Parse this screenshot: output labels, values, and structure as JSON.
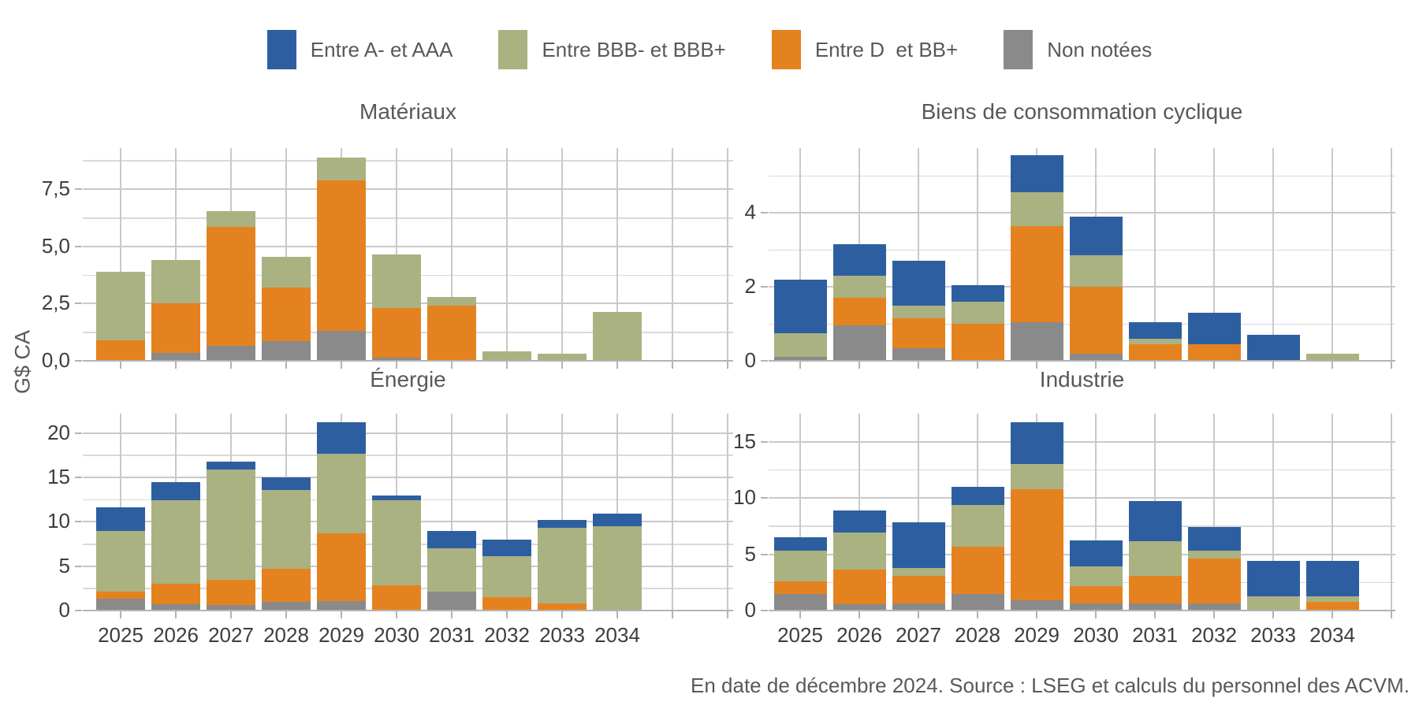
{
  "legend": {
    "items": [
      {
        "label": "Entre A- et AAA",
        "color": "#2d5fa0"
      },
      {
        "label": "Entre BBB- et BBB+",
        "color": "#aab282"
      },
      {
        "label": "Entre D  et BB+",
        "color": "#e58220"
      },
      {
        "label": "Non notées",
        "color": "#8a8a8a"
      }
    ]
  },
  "y_axis_label": "G$ CA",
  "caption": "En date de décembre 2024. Source : LSEG et calculs du personnel des ACVM.",
  "chart_data": [
    {
      "type": "bar",
      "stacked": true,
      "title": "Matériaux",
      "categories": [
        "2025",
        "2026",
        "2027",
        "2028",
        "2029",
        "2030",
        "2031",
        "2032",
        "2033",
        "2034"
      ],
      "series": [
        {
          "name": "Non notées",
          "color": "#8a8a8a",
          "values": [
            0.05,
            0.35,
            0.65,
            0.85,
            1.3,
            0.15,
            0,
            0,
            0,
            0
          ]
        },
        {
          "name": "Entre D  et BB+",
          "color": "#e58220",
          "values": [
            0.85,
            2.15,
            5.2,
            2.35,
            6.6,
            2.15,
            2.4,
            0,
            0,
            0
          ]
        },
        {
          "name": "Entre BBB- et BBB+",
          "color": "#aab282",
          "values": [
            3.0,
            1.9,
            0.7,
            1.35,
            1.0,
            2.35,
            0.4,
            0.4,
            0.3,
            2.15
          ]
        },
        {
          "name": "Entre A- et AAA",
          "color": "#2d5fa0",
          "values": [
            0,
            0,
            0,
            0,
            0,
            0,
            0,
            0,
            0,
            0
          ]
        }
      ],
      "ylim": [
        0,
        9.3
      ],
      "yticks": [
        {
          "value": 0,
          "label": "0,0"
        },
        {
          "value": 2.5,
          "label": "2,5"
        },
        {
          "value": 5,
          "label": "5,0"
        },
        {
          "value": 7.5,
          "label": "7,5"
        }
      ],
      "minor_ticks": [
        1.25,
        3.75,
        6.25,
        8.75
      ],
      "grid": true,
      "show_x_labels": false
    },
    {
      "type": "bar",
      "stacked": true,
      "title": "Biens de consommation cyclique",
      "categories": [
        "2025",
        "2026",
        "2027",
        "2028",
        "2029",
        "2030",
        "2031",
        "2032",
        "2033",
        "2034"
      ],
      "series": [
        {
          "name": "Non notées",
          "color": "#8a8a8a",
          "values": [
            0.1,
            0.95,
            0.35,
            0,
            1.05,
            0.2,
            0,
            0,
            0,
            0
          ]
        },
        {
          "name": "Entre D  et BB+",
          "color": "#e58220",
          "values": [
            0,
            0.75,
            0.8,
            1.0,
            2.6,
            1.8,
            0.45,
            0.45,
            0,
            0
          ]
        },
        {
          "name": "Entre BBB- et BBB+",
          "color": "#aab282",
          "values": [
            0.65,
            0.6,
            0.35,
            0.6,
            0.9,
            0.85,
            0.15,
            0,
            0,
            0.2
          ]
        },
        {
          "name": "Entre A- et AAA",
          "color": "#2d5fa0",
          "values": [
            1.45,
            0.85,
            1.2,
            0.45,
            1.0,
            1.05,
            0.45,
            0.85,
            0.7,
            0
          ]
        }
      ],
      "ylim": [
        0,
        5.75
      ],
      "yticks": [
        {
          "value": 0,
          "label": "0"
        },
        {
          "value": 2,
          "label": "2"
        },
        {
          "value": 4,
          "label": "4"
        }
      ],
      "minor_ticks": [
        1,
        3,
        5
      ],
      "grid": true,
      "show_x_labels": false
    },
    {
      "type": "bar",
      "stacked": true,
      "title": "Énergie",
      "categories": [
        "2025",
        "2026",
        "2027",
        "2028",
        "2029",
        "2030",
        "2031",
        "2032",
        "2033",
        "2034"
      ],
      "series": [
        {
          "name": "Non notées",
          "color": "#8a8a8a",
          "values": [
            1.3,
            0.75,
            0.6,
            0.95,
            1.1,
            0,
            2.1,
            0,
            0,
            0
          ]
        },
        {
          "name": "Entre D  et BB+",
          "color": "#e58220",
          "values": [
            0.8,
            2.25,
            2.9,
            3.75,
            7.6,
            2.8,
            0,
            1.5,
            0.8,
            0
          ]
        },
        {
          "name": "Entre BBB- et BBB+",
          "color": "#aab282",
          "values": [
            6.9,
            9.4,
            12.4,
            8.9,
            9.0,
            9.6,
            4.9,
            4.6,
            8.5,
            9.5
          ]
        },
        {
          "name": "Entre A- et AAA",
          "color": "#2d5fa0",
          "values": [
            2.6,
            2.1,
            0.9,
            1.4,
            3.5,
            0.6,
            2.0,
            1.9,
            0.9,
            1.4
          ]
        }
      ],
      "ylim": [
        0,
        22.2
      ],
      "yticks": [
        {
          "value": 0,
          "label": "0"
        },
        {
          "value": 5,
          "label": "5"
        },
        {
          "value": 10,
          "label": "10"
        },
        {
          "value": 15,
          "label": "15"
        },
        {
          "value": 20,
          "label": "20"
        }
      ],
      "minor_ticks": [
        2.5,
        7.5,
        12.5,
        17.5
      ],
      "grid": true,
      "show_x_labels": true
    },
    {
      "type": "bar",
      "stacked": true,
      "title": "Industrie",
      "categories": [
        "2025",
        "2026",
        "2027",
        "2028",
        "2029",
        "2030",
        "2031",
        "2032",
        "2033",
        "2034"
      ],
      "series": [
        {
          "name": "Non notées",
          "color": "#8a8a8a",
          "values": [
            1.5,
            0.55,
            0.65,
            1.5,
            0.9,
            0.6,
            0.6,
            0.65,
            0.1,
            0
          ]
        },
        {
          "name": "Entre D  et BB+",
          "color": "#e58220",
          "values": [
            1.1,
            3.1,
            2.45,
            4.2,
            9.9,
            1.6,
            2.45,
            3.95,
            0,
            0.75
          ]
        },
        {
          "name": "Entre BBB- et BBB+",
          "color": "#aab282",
          "values": [
            2.7,
            3.3,
            0.7,
            3.7,
            2.2,
            1.7,
            3.1,
            0.7,
            1.15,
            0.5
          ]
        },
        {
          "name": "Entre A- et AAA",
          "color": "#2d5fa0",
          "values": [
            1.2,
            1.95,
            4.05,
            1.6,
            3.7,
            2.35,
            3.55,
            2.1,
            3.15,
            3.15
          ]
        }
      ],
      "ylim": [
        0,
        17.5
      ],
      "yticks": [
        {
          "value": 0,
          "label": "0"
        },
        {
          "value": 5,
          "label": "5"
        },
        {
          "value": 10,
          "label": "10"
        },
        {
          "value": 15,
          "label": "15"
        }
      ],
      "minor_ticks": [
        2.5,
        7.5,
        12.5
      ],
      "grid": true,
      "show_x_labels": true
    }
  ]
}
